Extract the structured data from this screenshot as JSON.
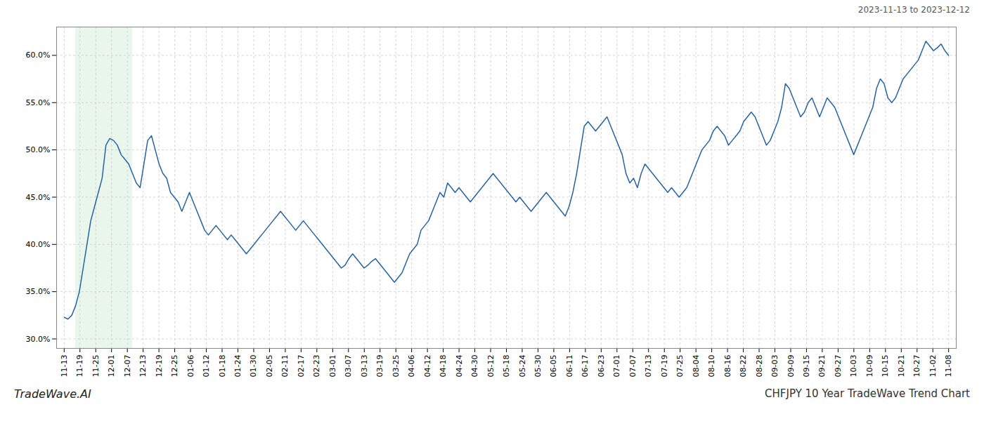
{
  "chart_data": {
    "type": "line",
    "title": "CHFJPY 10 Year TradeWave Trend Chart",
    "subtitle": "2023-11-13 to 2023-12-12",
    "annotations": [
      "TradeWave.AI"
    ],
    "color": "#2563a8",
    "grid": true,
    "xlim": [
      -2,
      235
    ],
    "xticks": [
      {
        "value": 0,
        "label": "11-13"
      },
      {
        "value": 4.1607,
        "label": "11-19"
      },
      {
        "value": 8.3214,
        "label": "11-25"
      },
      {
        "value": 12.4821,
        "label": "12-01"
      },
      {
        "value": 16.6429,
        "label": "12-07"
      },
      {
        "value": 20.8036,
        "label": "12-13"
      },
      {
        "value": 24.9643,
        "label": "12-19"
      },
      {
        "value": 29.125,
        "label": "12-25"
      },
      {
        "value": 33.2857,
        "label": "01-06"
      },
      {
        "value": 37.4464,
        "label": "01-12"
      },
      {
        "value": 41.6071,
        "label": "01-18"
      },
      {
        "value": 45.7679,
        "label": "01-24"
      },
      {
        "value": 49.9286,
        "label": "01-30"
      },
      {
        "value": 54.0893,
        "label": "02-05"
      },
      {
        "value": 58.25,
        "label": "02-11"
      },
      {
        "value": 62.4107,
        "label": "02-17"
      },
      {
        "value": 66.5714,
        "label": "02-23"
      },
      {
        "value": 70.7321,
        "label": "03-01"
      },
      {
        "value": 74.8929,
        "label": "03-07"
      },
      {
        "value": 79.0536,
        "label": "03-13"
      },
      {
        "value": 83.2143,
        "label": "03-19"
      },
      {
        "value": 87.375,
        "label": "03-25"
      },
      {
        "value": 91.5357,
        "label": "04-06"
      },
      {
        "value": 95.6964,
        "label": "04-12"
      },
      {
        "value": 99.8571,
        "label": "04-18"
      },
      {
        "value": 104.0179,
        "label": "04-24"
      },
      {
        "value": 108.1786,
        "label": "04-30"
      },
      {
        "value": 112.3393,
        "label": "05-12"
      },
      {
        "value": 116.5,
        "label": "05-18"
      },
      {
        "value": 120.6607,
        "label": "05-24"
      },
      {
        "value": 124.8214,
        "label": "05-30"
      },
      {
        "value": 128.9821,
        "label": "06-05"
      },
      {
        "value": 133.1429,
        "label": "06-11"
      },
      {
        "value": 137.3036,
        "label": "06-17"
      },
      {
        "value": 141.4643,
        "label": "06-23"
      },
      {
        "value": 145.625,
        "label": "07-01"
      },
      {
        "value": 149.7857,
        "label": "07-07"
      },
      {
        "value": 153.9464,
        "label": "07-13"
      },
      {
        "value": 158.1071,
        "label": "07-19"
      },
      {
        "value": 162.2679,
        "label": "07-25"
      },
      {
        "value": 166.4286,
        "label": "08-04"
      },
      {
        "value": 170.5893,
        "label": "08-10"
      },
      {
        "value": 174.75,
        "label": "08-16"
      },
      {
        "value": 178.9107,
        "label": "08-22"
      },
      {
        "value": 183.0714,
        "label": "08-28"
      },
      {
        "value": 187.2321,
        "label": "09-03"
      },
      {
        "value": 191.3929,
        "label": "09-09"
      },
      {
        "value": 195.5536,
        "label": "09-15"
      },
      {
        "value": 199.7143,
        "label": "09-21"
      },
      {
        "value": 203.875,
        "label": "09-27"
      },
      {
        "value": 208.0357,
        "label": "10-03"
      },
      {
        "value": 212.1964,
        "label": "10-09"
      },
      {
        "value": 216.3571,
        "label": "10-15"
      },
      {
        "value": 220.5179,
        "label": "10-21"
      },
      {
        "value": 224.6786,
        "label": "10-27"
      },
      {
        "value": 228.8393,
        "label": "11-02"
      },
      {
        "value": 233,
        "label": "11-08"
      }
    ],
    "ylim": [
      29.0,
      63.0
    ],
    "yticks": [
      {
        "value": 30.0,
        "label": "30.0%"
      },
      {
        "value": 35.0,
        "label": "35.0%"
      },
      {
        "value": 40.0,
        "label": "40.0%"
      },
      {
        "value": 45.0,
        "label": "45.0%"
      },
      {
        "value": 50.0,
        "label": "50.0%"
      },
      {
        "value": 55.0,
        "label": "55.0%"
      },
      {
        "value": 60.0,
        "label": "60.0%"
      }
    ],
    "shaded_region": {
      "x": [
        3,
        18
      ],
      "color": "#d4edda"
    },
    "values": [
      32.3,
      32.1,
      32.5,
      33.5,
      35.0,
      37.5,
      40.0,
      42.5,
      44.0,
      45.5,
      47.0,
      50.5,
      51.2,
      51.0,
      50.5,
      49.5,
      49.0,
      48.5,
      47.5,
      46.5,
      46.0,
      48.5,
      51.0,
      51.5,
      50.0,
      48.5,
      47.5,
      47.0,
      45.5,
      45.0,
      44.5,
      43.5,
      44.5,
      45.5,
      44.5,
      43.5,
      42.5,
      41.5,
      41.0,
      41.5,
      42.0,
      41.5,
      41.0,
      40.5,
      41.0,
      40.5,
      40.0,
      39.5,
      39.0,
      39.5,
      40.0,
      40.5,
      41.0,
      41.5,
      42.0,
      42.5,
      43.0,
      43.5,
      43.0,
      42.5,
      42.0,
      41.5,
      42.0,
      42.5,
      42.0,
      41.5,
      41.0,
      40.5,
      40.0,
      39.5,
      39.0,
      38.5,
      38.0,
      37.5,
      37.8,
      38.5,
      39.0,
      38.5,
      38.0,
      37.5,
      37.8,
      38.2,
      38.5,
      38.0,
      37.5,
      37.0,
      36.5,
      36.0,
      36.5,
      37.0,
      38.0,
      39.0,
      39.5,
      40.0,
      41.5,
      42.0,
      42.5,
      43.5,
      44.5,
      45.5,
      45.0,
      46.5,
      46.0,
      45.5,
      46.0,
      45.5,
      45.0,
      44.5,
      45.0,
      45.5,
      46.0,
      46.5,
      47.0,
      47.5,
      47.0,
      46.5,
      46.0,
      45.5,
      45.0,
      44.5,
      45.0,
      44.5,
      44.0,
      43.5,
      44.0,
      44.5,
      45.0,
      45.5,
      45.0,
      44.5,
      44.0,
      43.5,
      43.0,
      44.0,
      45.5,
      47.5,
      50.0,
      52.5,
      53.0,
      52.5,
      52.0,
      52.5,
      53.0,
      53.5,
      52.5,
      51.5,
      50.5,
      49.5,
      47.5,
      46.5,
      47.0,
      46.0,
      47.5,
      48.5,
      48.0,
      47.5,
      47.0,
      46.5,
      46.0,
      45.5,
      46.0,
      45.5,
      45.0,
      45.5,
      46.0,
      47.0,
      48.0,
      49.0,
      50.0,
      50.5,
      51.0,
      52.0,
      52.5,
      52.0,
      51.5,
      50.5,
      51.0,
      51.5,
      52.0,
      53.0,
      53.5,
      54.0,
      53.5,
      52.5,
      51.5,
      50.5,
      51.0,
      52.0,
      53.0,
      54.5,
      57.0,
      56.5,
      55.5,
      54.5,
      53.5,
      54.0,
      55.0,
      55.5,
      54.5,
      53.5,
      54.5,
      55.5,
      55.0,
      54.5,
      53.5,
      52.5,
      51.5,
      50.5,
      49.5,
      50.5,
      51.5,
      52.5,
      53.5,
      54.5,
      56.5,
      57.5,
      57.0,
      55.5,
      55.0,
      55.5,
      56.5,
      57.5,
      58.0,
      58.5,
      59.0,
      59.5,
      60.5,
      61.5,
      61.0,
      60.5,
      60.8,
      61.2,
      60.5,
      60.0
    ]
  }
}
